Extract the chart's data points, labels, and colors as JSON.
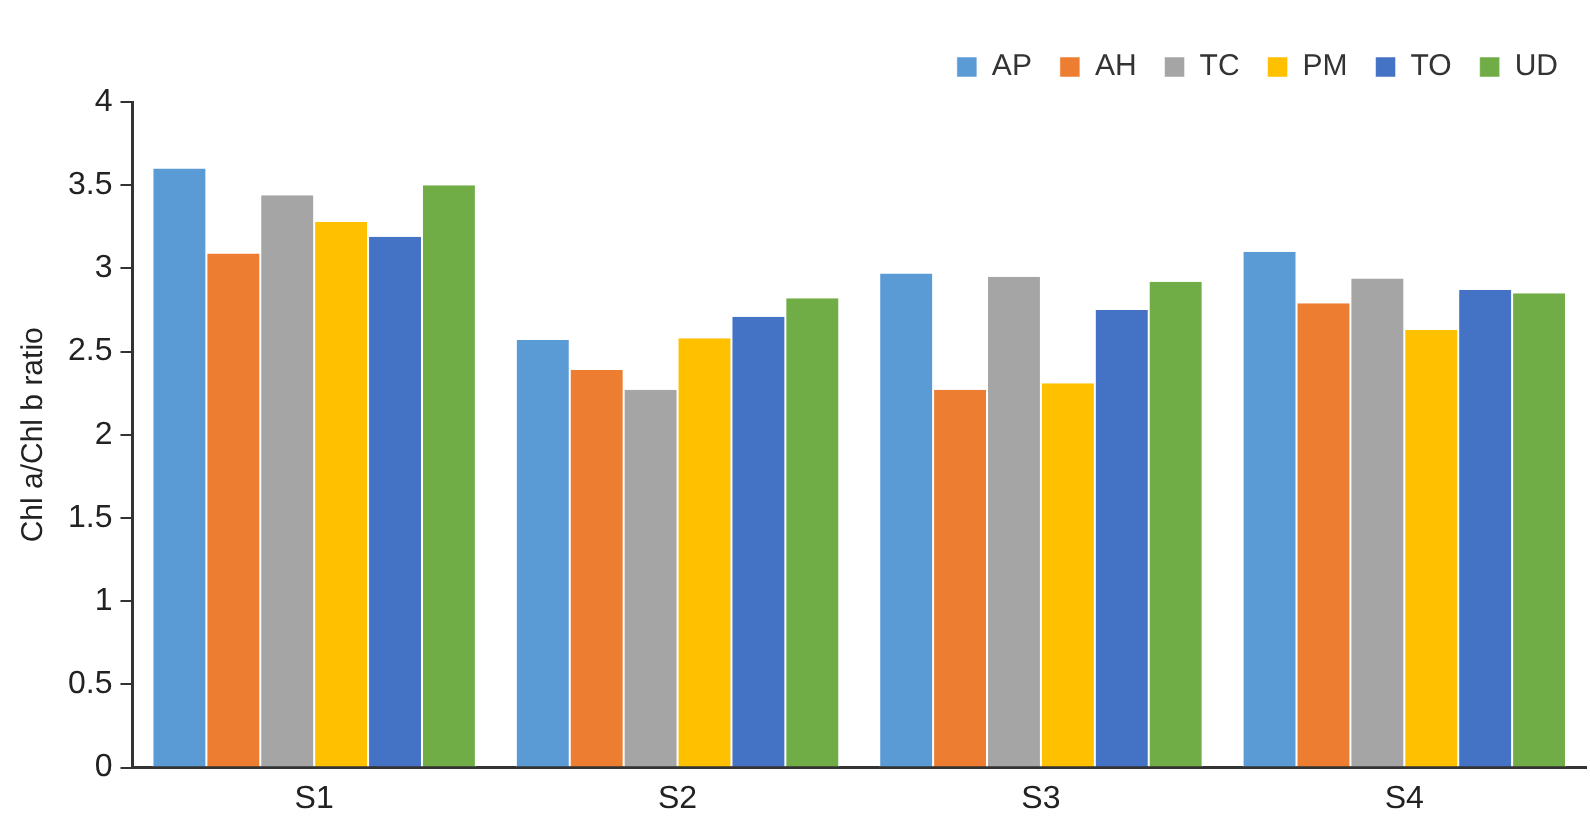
{
  "chart_data": {
    "type": "bar",
    "ylabel": "Chl a/Chl b ratio",
    "categories": [
      "S1",
      "S2",
      "S3",
      "S4"
    ],
    "series": [
      {
        "name": "AP",
        "color": "#5b9bd5",
        "values": [
          3.6,
          2.57,
          2.97,
          3.1
        ]
      },
      {
        "name": "AH",
        "color": "#ed7d31",
        "values": [
          3.09,
          2.39,
          2.27,
          2.79
        ]
      },
      {
        "name": "TC",
        "color": "#a5a5a5",
        "values": [
          3.44,
          2.27,
          2.95,
          2.94
        ]
      },
      {
        "name": "PM",
        "color": "#ffc000",
        "values": [
          3.28,
          2.58,
          2.31,
          2.63
        ]
      },
      {
        "name": "TO",
        "color": "#4472c4",
        "values": [
          3.19,
          2.71,
          2.75,
          2.87
        ]
      },
      {
        "name": "UD",
        "color": "#70ad47",
        "values": [
          3.5,
          2.82,
          2.92,
          2.85
        ]
      }
    ],
    "ylim": [
      0,
      4
    ],
    "yticks": [
      0,
      0.5,
      1,
      1.5,
      2,
      2.5,
      3,
      3.5,
      4
    ],
    "grid": false,
    "legend": "top right"
  }
}
